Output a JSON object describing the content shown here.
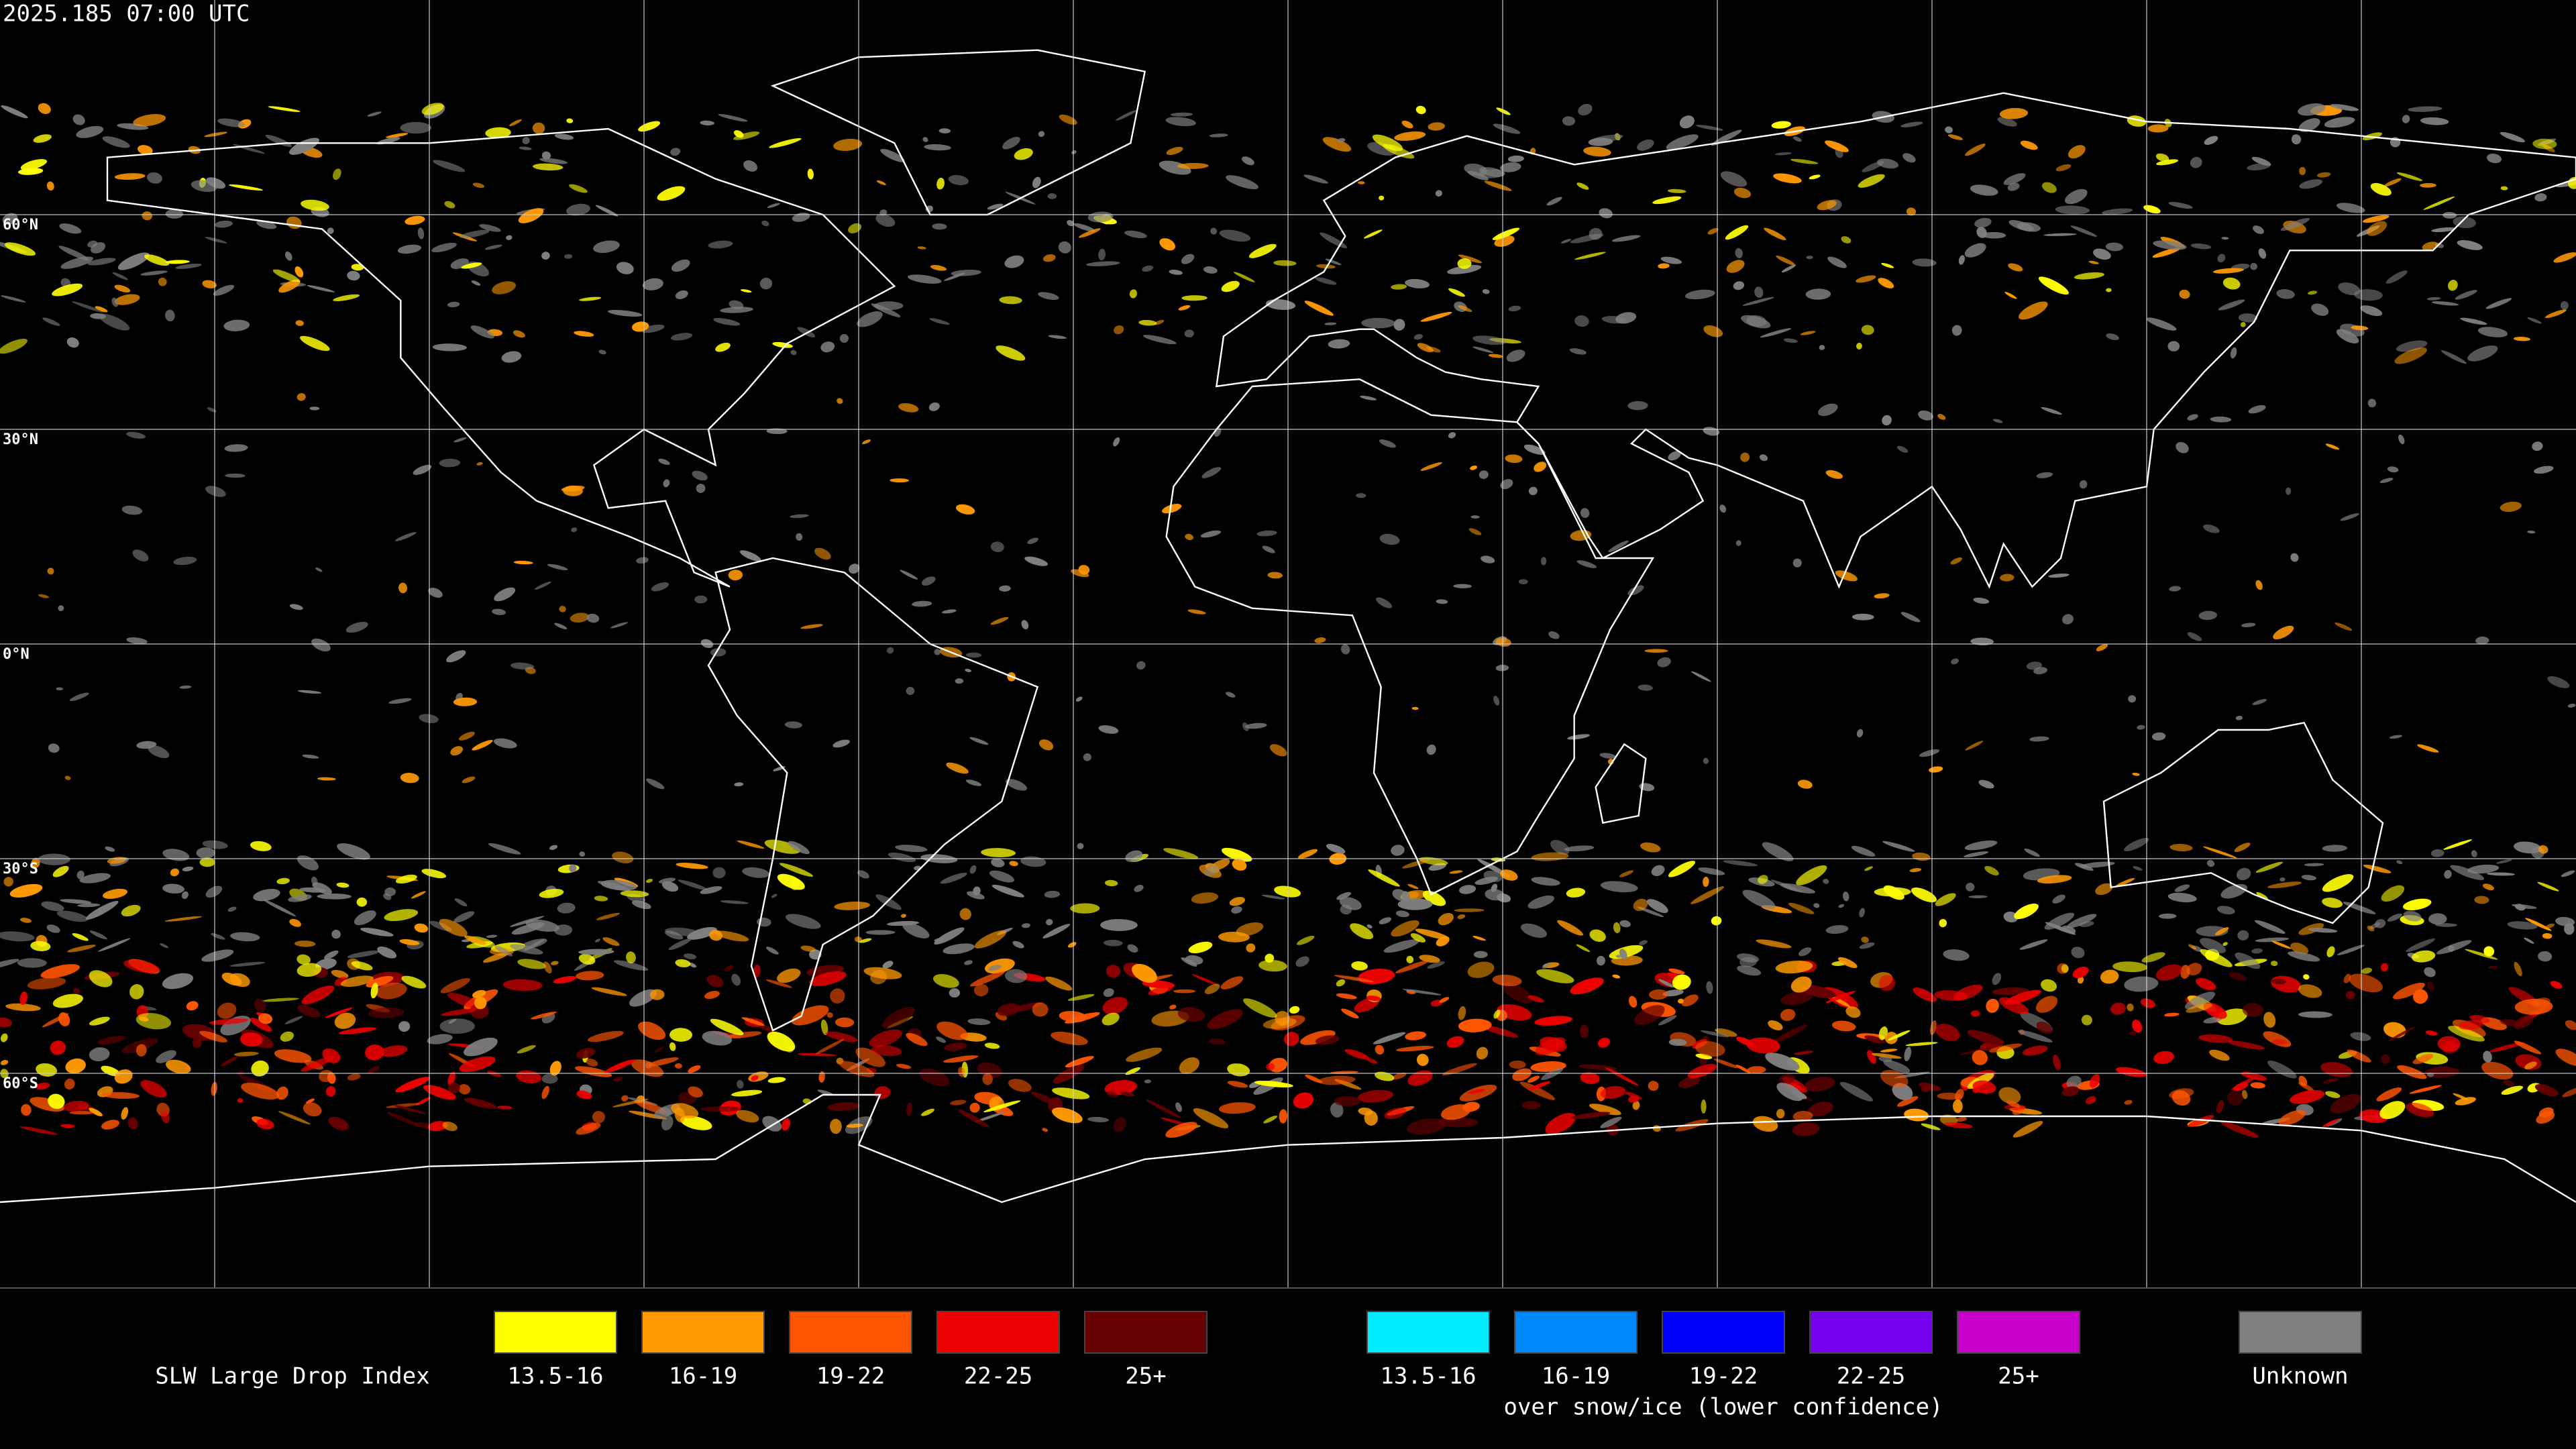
{
  "header": {
    "timestamp": "2025.185 07:00 UTC"
  },
  "map": {
    "lat_labels": [
      "60°N",
      "30°N",
      "0°N",
      "30°S",
      "60°S"
    ]
  },
  "legend": {
    "title": "SLW Large Drop Index",
    "groups": [
      {
        "items": [
          {
            "label": "13.5-16",
            "color": "#ffff00"
          },
          {
            "label": "16-19",
            "color": "#ff9900"
          },
          {
            "label": "19-22",
            "color": "#ff5500"
          },
          {
            "label": "22-25",
            "color": "#ee0000"
          },
          {
            "label": "25+",
            "color": "#660000"
          }
        ]
      },
      {
        "items": [
          {
            "label": "13.5-16",
            "color": "#00eeff"
          },
          {
            "label": "16-19",
            "color": "#0088ff"
          },
          {
            "label": "19-22",
            "color": "#0000ff"
          },
          {
            "label": "22-25",
            "color": "#7700ee"
          },
          {
            "label": "25+",
            "color": "#cc00cc"
          }
        ],
        "caption": "over snow/ice (lower confidence)"
      }
    ],
    "unknown": {
      "label": "Unknown",
      "color": "#808080"
    }
  }
}
